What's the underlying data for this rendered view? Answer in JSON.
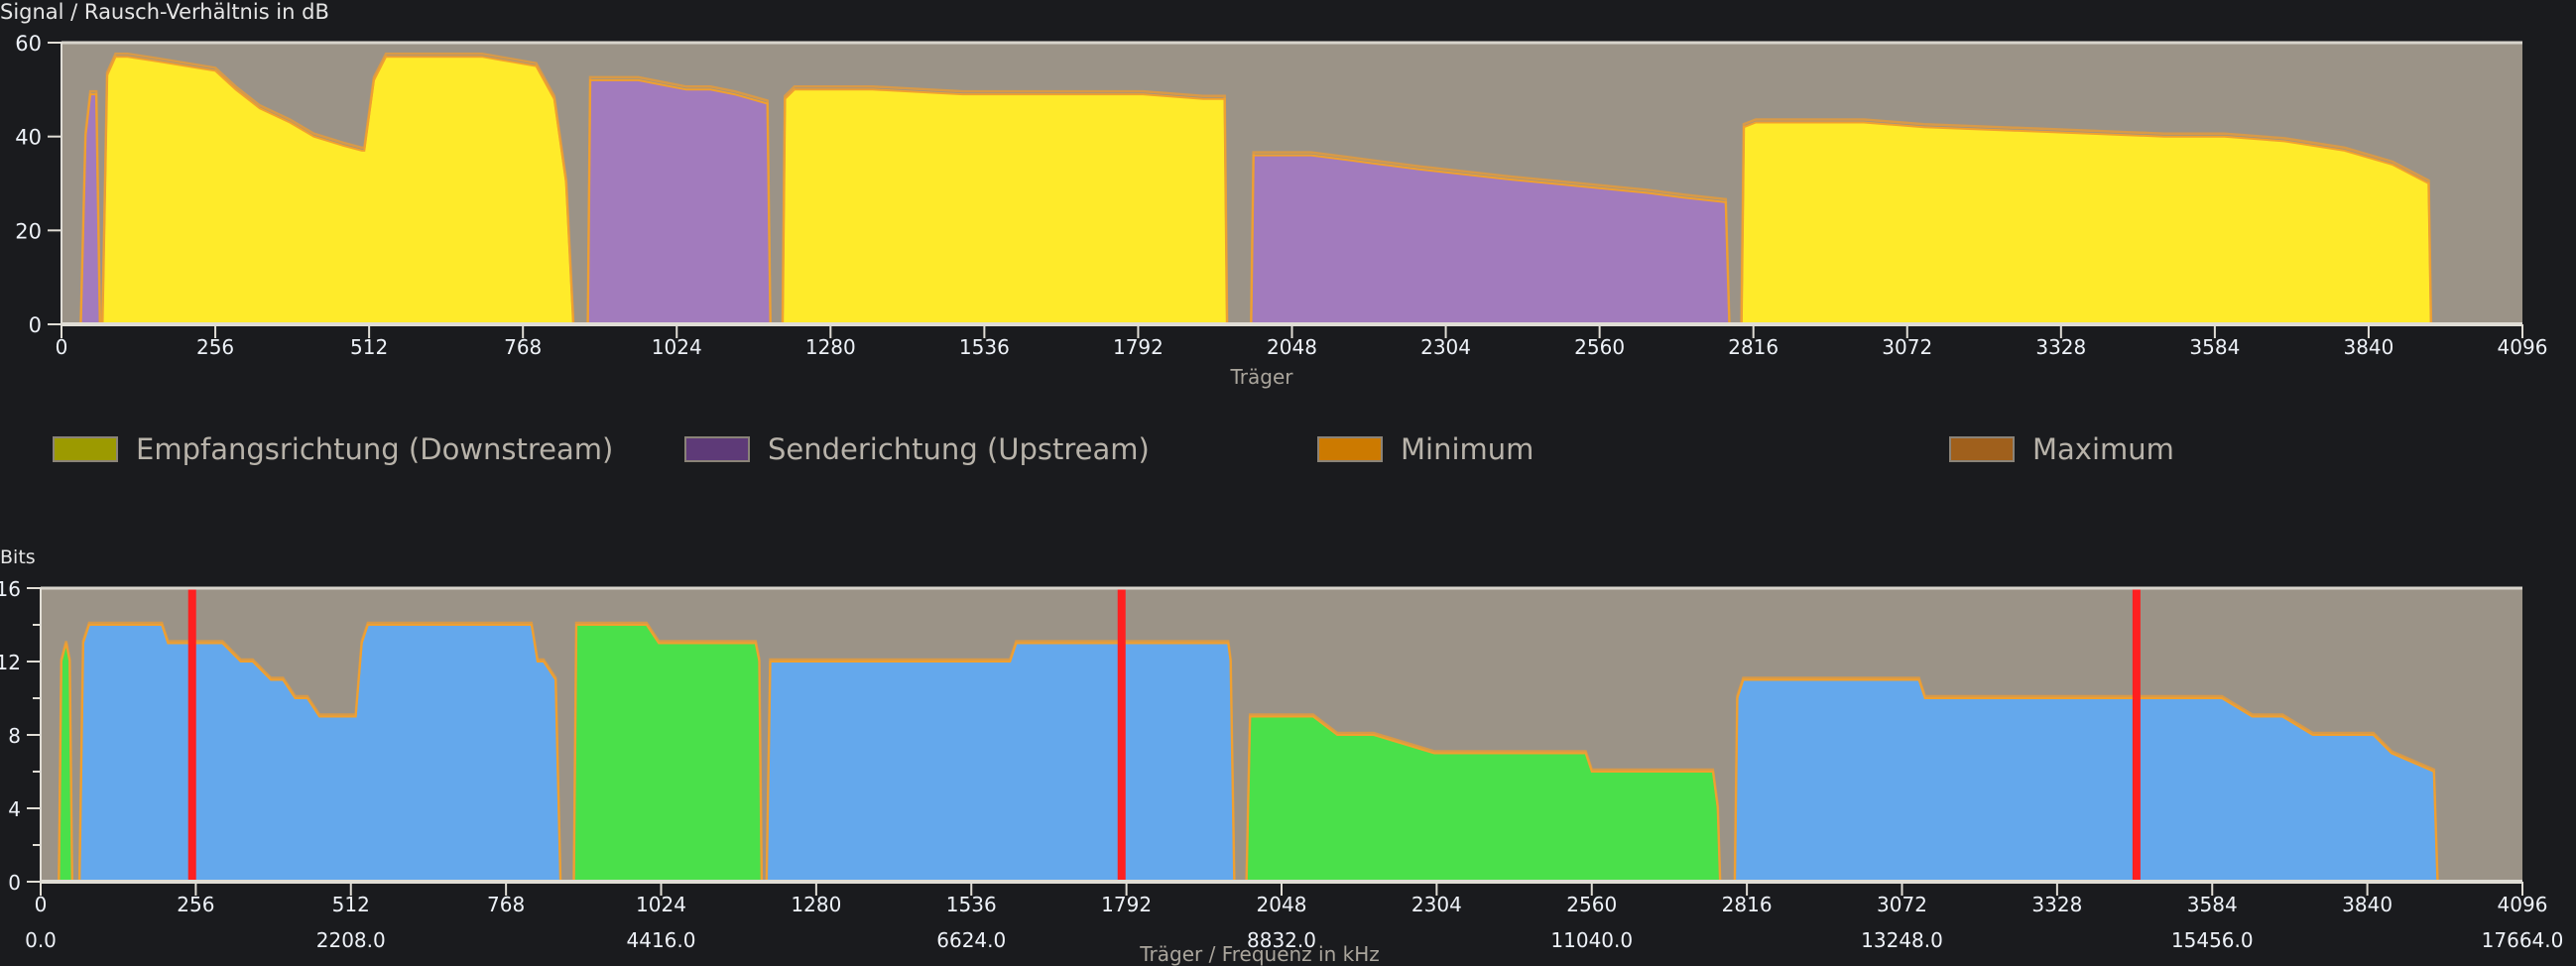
{
  "snr_chart": {
    "title": "Signal / Rausch-Verhältnis in dB",
    "xlabel": "Träger"
  },
  "bits_chart": {
    "title": "Bits",
    "xlabel": "Träger / Frequenz in kHz"
  },
  "legend": [
    {
      "label": "Empfangsrichtung (Downstream)",
      "color": "#9c9a00"
    },
    {
      "label": "Senderichtung (Upstream)",
      "color": "#5e3a78"
    },
    {
      "label": "Minimum",
      "color": "#cc7a00"
    },
    {
      "label": "Maximum",
      "color": "#a0601c"
    }
  ],
  "colors": {
    "page_bg": "#1a1b1e",
    "plot_bg": "#9b9387",
    "snr_downstream_fill": "#ffeb2a",
    "snr_upstream_fill": "#a27bbd",
    "bits_downstream_fill": "#64a8ec",
    "bits_upstream_fill": "#4ae04a",
    "min_max_line": "#f0a030",
    "marker_line": "#ff2020",
    "axis": "#e0ddd5"
  },
  "chart_data": [
    {
      "type": "area",
      "title": "Signal / Rausch-Verhältnis in dB",
      "xlabel": "Träger",
      "ylabel": "dB",
      "xlim": [
        0,
        4096
      ],
      "ylim": [
        0,
        60
      ],
      "x_ticks": [
        0,
        256,
        512,
        768,
        1024,
        1280,
        1536,
        1792,
        2048,
        2304,
        2560,
        2816,
        3072,
        3328,
        3584,
        3840,
        4096
      ],
      "y_ticks": [
        0,
        20,
        40,
        60
      ],
      "grid": false,
      "series": [
        {
          "name": "Senderichtung (Upstream)",
          "direction": "up",
          "segments": [
            {
              "x": [
                32,
                40,
                48,
                58,
                64
              ],
              "y": [
                0,
                40,
                49,
                49,
                0
              ]
            },
            {
              "x": [
                876,
                880,
                960,
                1000,
                1040,
                1080,
                1120,
                1175,
                1180
              ],
              "y": [
                0,
                52,
                52,
                51,
                50,
                50,
                49,
                47,
                0
              ]
            },
            {
              "x": [
                1980,
                1984,
                2080,
                2140,
                2200,
                2260,
                2330,
                2400,
                2480,
                2560,
                2640,
                2700,
                2770,
                2776
              ],
              "y": [
                0,
                36,
                36,
                35,
                34,
                33,
                32,
                31,
                30,
                29,
                28,
                27,
                26,
                0
              ]
            }
          ]
        },
        {
          "name": "Empfangsrichtung (Downstream)",
          "direction": "down",
          "segments": [
            {
              "x": [
                68,
                76,
                90,
                110,
                160,
                256,
                290,
                330,
                380,
                420,
                470,
                500,
                504,
                520,
                540,
                600,
                700,
                790,
                820,
                840,
                852
              ],
              "y": [
                0,
                53,
                57,
                57,
                56,
                54,
                50,
                46,
                43,
                40,
                38,
                37,
                37,
                52,
                57,
                57,
                57,
                55,
                48,
                30,
                0
              ]
            },
            {
              "x": [
                1200,
                1204,
                1220,
                1350,
                1500,
                1650,
                1800,
                1900,
                1936,
                1940
              ],
              "y": [
                0,
                48,
                50,
                50,
                49,
                49,
                49,
                48,
                48,
                0
              ]
            },
            {
              "x": [
                2796,
                2800,
                2820,
                3000,
                3100,
                3300,
                3500,
                3600,
                3700,
                3800,
                3880,
                3940,
                3944
              ],
              "y": [
                0,
                42,
                43,
                43,
                42,
                41,
                40,
                40,
                39,
                37,
                34,
                30,
                0
              ]
            }
          ]
        },
        {
          "name": "Minimum",
          "note": "per-carrier minimum, tracks slightly below current value with dips (e.g. ~39 dB near carrier 1720, ~30 dB near 3130, ~30 dB near 3560)"
        },
        {
          "name": "Maximum",
          "note": "per-carrier maximum, tracks ~1 dB above current value"
        }
      ]
    },
    {
      "type": "area",
      "title": "Bits",
      "xlabel": "Träger / Frequenz in kHz",
      "ylabel": "Bits",
      "xlim": [
        0,
        4096
      ],
      "ylim": [
        0,
        16
      ],
      "x_ticks": [
        0,
        256,
        512,
        768,
        1024,
        1280,
        1536,
        1792,
        2048,
        2304,
        2560,
        2816,
        3072,
        3328,
        3584,
        3840,
        4096
      ],
      "x_ticks_khz": [
        "0.0",
        "2208.0",
        "4416.0",
        "6624.0",
        "8832.0",
        "11040.0",
        "13248.0",
        "15456.0",
        "17664.0"
      ],
      "x_ticks_khz_positions": [
        0,
        512,
        1024,
        1536,
        2048,
        2560,
        3072,
        3584,
        4096
      ],
      "y_ticks": [
        0,
        4,
        8,
        12,
        16
      ],
      "y_minor_ticks": [
        2,
        6,
        10,
        14
      ],
      "markers": [
        250,
        1784,
        3459
      ],
      "series": [
        {
          "name": "Upstream",
          "direction": "up",
          "segments": [
            {
              "x": [
                30,
                34,
                42,
                48,
                52
              ],
              "y": [
                0,
                12,
                13,
                12,
                0
              ]
            },
            {
              "x": [
                880,
                884,
                1000,
                1020,
                1040,
                1100,
                1180,
                1186,
                1190
              ],
              "y": [
                0,
                14,
                14,
                13,
                13,
                13,
                13,
                12,
                0
              ]
            },
            {
              "x": [
                1990,
                1996,
                2100,
                2140,
                2200,
                2300,
                2500,
                2550,
                2560,
                2760,
                2768,
                2772
              ],
              "y": [
                0,
                9,
                9,
                8,
                8,
                7,
                7,
                7,
                6,
                6,
                4,
                0
              ]
            }
          ]
        },
        {
          "name": "Downstream",
          "direction": "down",
          "segments": [
            {
              "x": [
                64,
                70,
                80,
                200,
                210,
                300,
                330,
                350,
                380,
                400,
                420,
                440,
                460,
                490,
                520,
                530,
                540,
                810,
                820,
                830,
                850,
                858
              ],
              "y": [
                0,
                13,
                14,
                14,
                13,
                13,
                12,
                12,
                11,
                11,
                10,
                10,
                9,
                9,
                9,
                13,
                14,
                14,
                12,
                12,
                11,
                0
              ]
            },
            {
              "x": [
                1198,
                1204,
                1600,
                1610,
                1960,
                1964,
                1970
              ],
              "y": [
                0,
                12,
                12,
                13,
                13,
                12,
                0
              ]
            },
            {
              "x": [
                2796,
                2800,
                2810,
                3100,
                3110,
                3500,
                3600,
                3650,
                3700,
                3750,
                3800,
                3850,
                3880,
                3950,
                3956
              ],
              "y": [
                0,
                10,
                11,
                11,
                10,
                10,
                10,
                9,
                9,
                8,
                8,
                8,
                7,
                6,
                0
              ]
            }
          ]
        },
        {
          "name": "Minimum/Maximum",
          "note": "orange outline lines tracing min and max bit loading per carrier"
        }
      ]
    }
  ]
}
